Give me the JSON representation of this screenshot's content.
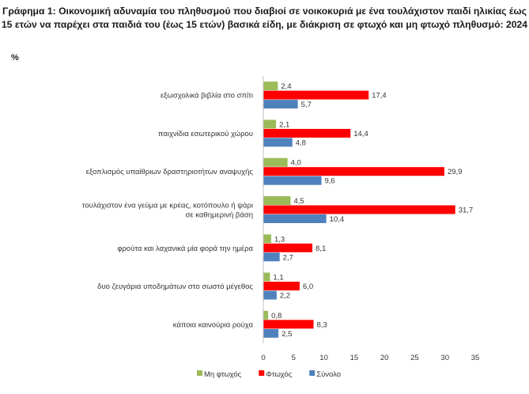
{
  "chart_data": {
    "type": "bar",
    "orientation": "horizontal",
    "title": "Γράφημα 1: Οικονομική αδυναμία του πληθυσμού που διαβιοί σε νοικοκυριά με ένα τουλάχιστον παιδί ηλικίας έως 15 ετών να παρέχει στα παιδιά του (έως 15 ετών) βασικά είδη, με διάκριση σε φτωχό και μη φτωχό πληθυσμό: 2024",
    "unit_label": "%",
    "categories": [
      [
        "εξωσχολικά βιβλία στο σπίτι"
      ],
      [
        "παιχνίδια εσωτερικού χώρου"
      ],
      [
        "εξοπλισμός υπαίθριων δραστηριοτήτων αναψυχής"
      ],
      [
        "τουλάχιστον ένα γεύμα με κρέας, κοτόπουλο ή ψάρι",
        "σε καθημερινή βάση"
      ],
      [
        "φρούτα και λαχανικά μία φορά την ημέρα"
      ],
      [
        "δυο ζευγάρια υποδημάτων στο σωστό μέγεθος"
      ],
      [
        "κάποια καινούρια ρούχα"
      ]
    ],
    "series": [
      {
        "name": "Μη φτωχός",
        "color": "#9bbb59",
        "values": [
          2.4,
          2.1,
          4.0,
          4.5,
          1.3,
          1.1,
          0.8
        ],
        "labels": [
          "2,4",
          "2,1",
          "4,0",
          "4,5",
          "1,3",
          "1,1",
          "0,8"
        ]
      },
      {
        "name": "Φτωχός",
        "color": "#ff0000",
        "values": [
          17.4,
          14.4,
          29.9,
          31.7,
          8.1,
          6.0,
          8.3
        ],
        "labels": [
          "17,4",
          "14,4",
          "29,9",
          "31,7",
          "8,1",
          "6,0",
          "8,3"
        ]
      },
      {
        "name": "Σύνολο",
        "color": "#4f81bd",
        "values": [
          5.7,
          4.8,
          9.6,
          10.4,
          2.7,
          2.2,
          2.5
        ],
        "labels": [
          "5,7",
          "4,8",
          "9,6",
          "10,4",
          "2,7",
          "2,2",
          "2,5"
        ]
      }
    ],
    "xlim": [
      0,
      35
    ],
    "xticks": [
      0,
      5,
      10,
      15,
      20,
      25,
      30,
      35
    ],
    "grid": false,
    "legend": "bottom"
  }
}
